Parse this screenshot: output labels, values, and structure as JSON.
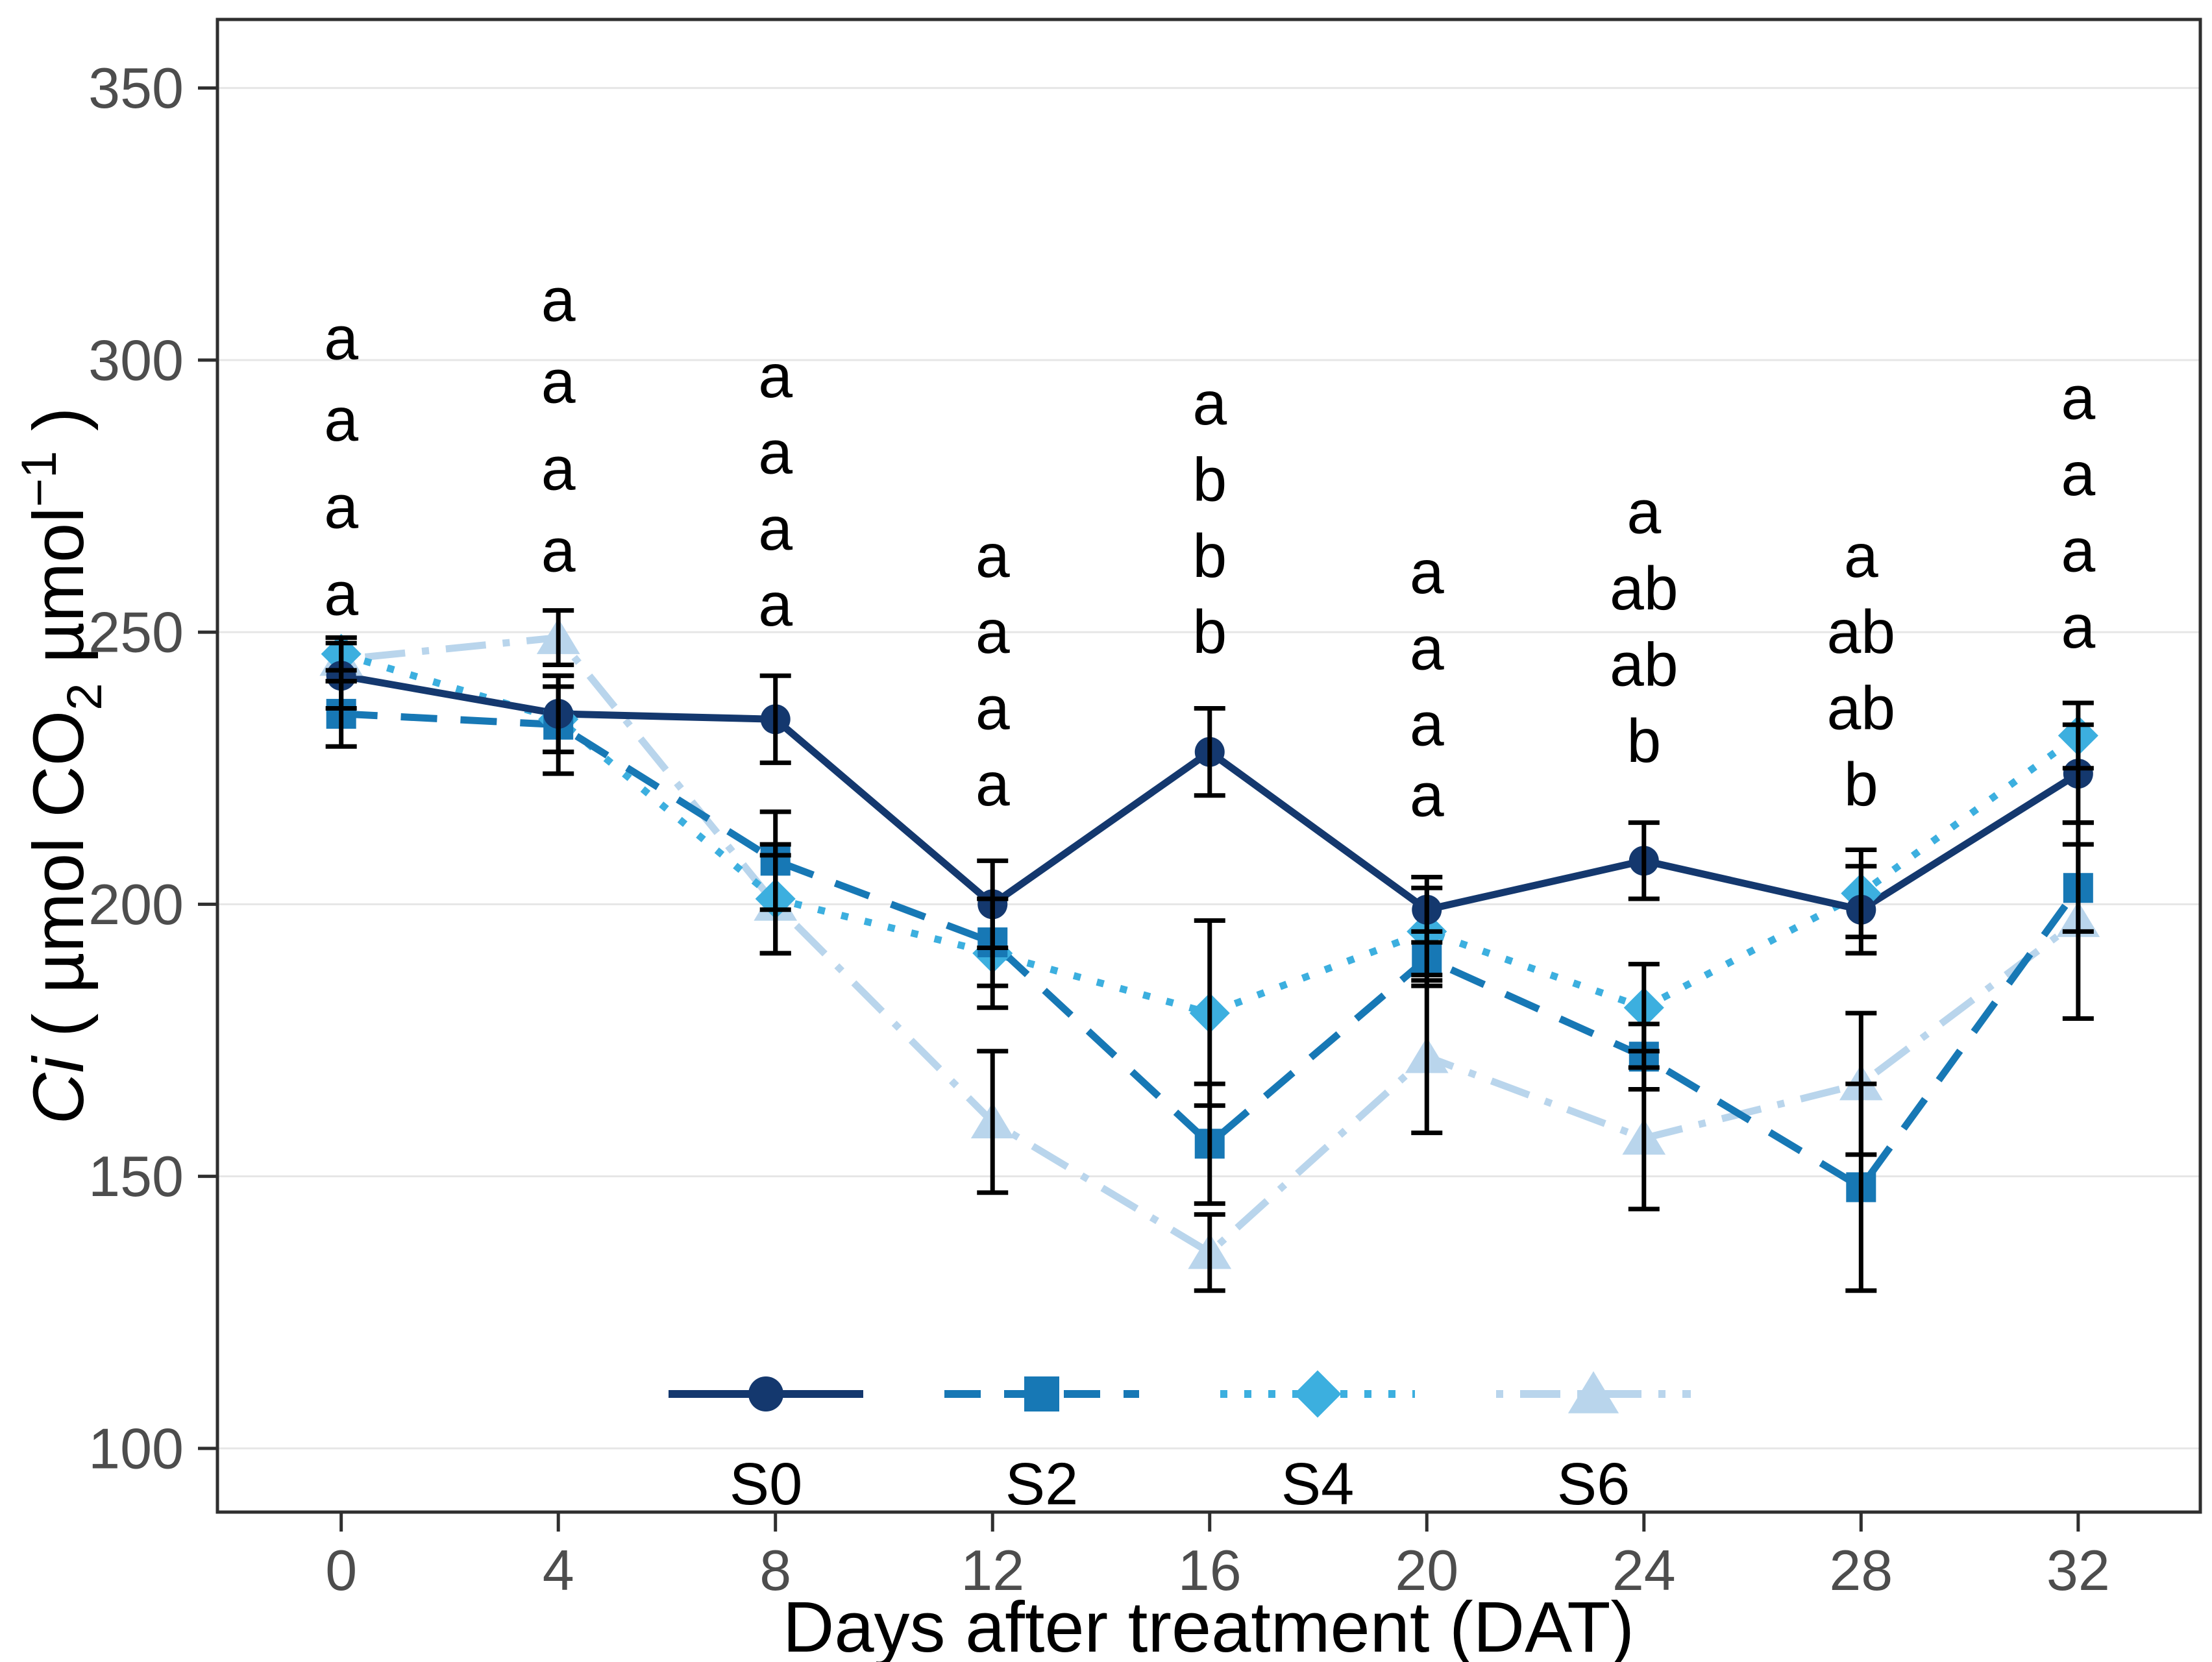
{
  "chart_data": {
    "type": "line",
    "title": "",
    "xlabel": "Days after treatment (DAT)",
    "ylabel": {
      "italic_prefix": "Ci",
      "open": " ( µmol CO",
      "sub": "2",
      "mid": "  µmol",
      "sup": "−1",
      "close": " )"
    },
    "x": [
      0,
      4,
      8,
      12,
      16,
      20,
      24,
      28,
      32
    ],
    "xticks": [
      0,
      4,
      8,
      12,
      16,
      20,
      24,
      28,
      32
    ],
    "yticks": [
      100,
      150,
      200,
      250,
      300,
      350
    ],
    "xlim": [
      -2.28,
      34.25
    ],
    "ylim": [
      88.3,
      362.6
    ],
    "grid": "horizontal-major-only",
    "legend_position": "bottom-inside",
    "series": [
      {
        "name": "S0",
        "color": "#14386e",
        "marker": "circle",
        "linestyle": "solid",
        "values": [
          242,
          235,
          234,
          200,
          228,
          199,
          208,
          199,
          224
        ],
        "errors": [
          6,
          7,
          8,
          8,
          8,
          6,
          7,
          8,
          9
        ]
      },
      {
        "name": "S2",
        "color": "#1778b5",
        "marker": "square",
        "linestyle": "dashed",
        "values": [
          235,
          233,
          208,
          193,
          156,
          190,
          172,
          148,
          203
        ],
        "errors": [
          6,
          9,
          9,
          8,
          11,
          5,
          6,
          19,
          8
        ]
      },
      {
        "name": "S4",
        "color": "#3cafdf",
        "marker": "diamond",
        "linestyle": "dotted",
        "values": [
          246,
          234,
          201,
          191,
          180,
          195,
          181,
          202,
          231
        ],
        "errors": [
          3,
          6,
          10,
          10,
          17,
          8,
          8,
          8,
          6
        ]
      },
      {
        "name": "S6",
        "color": "#b9d5ec",
        "marker": "triangle",
        "linestyle": "dotdash",
        "values": [
          245,
          249,
          200,
          160,
          136,
          172,
          157,
          167,
          197
        ],
        "errors": [
          4,
          5,
          9,
          13,
          7,
          14,
          13,
          13,
          18
        ]
      }
    ],
    "sig_letters": [
      {
        "x": 0,
        "items": [
          {
            "t": "a",
            "y": 304
          },
          {
            "t": "a",
            "y": 289
          },
          {
            "t": "a",
            "y": 273
          },
          {
            "t": "a",
            "y": 257
          }
        ]
      },
      {
        "x": 4,
        "items": [
          {
            "t": "a",
            "y": 311
          },
          {
            "t": "a",
            "y": 296
          },
          {
            "t": "a",
            "y": 280
          },
          {
            "t": "a",
            "y": 265
          }
        ]
      },
      {
        "x": 8,
        "items": [
          {
            "t": "a",
            "y": 297
          },
          {
            "t": "a",
            "y": 283
          },
          {
            "t": "a",
            "y": 269
          },
          {
            "t": "a",
            "y": 255
          }
        ]
      },
      {
        "x": 12,
        "items": [
          {
            "t": "a",
            "y": 264
          },
          {
            "t": "a",
            "y": 250
          },
          {
            "t": "a",
            "y": 236
          },
          {
            "t": "a",
            "y": 222
          }
        ]
      },
      {
        "x": 16,
        "items": [
          {
            "t": "a",
            "y": 292
          },
          {
            "t": "b",
            "y": 278
          },
          {
            "t": "b",
            "y": 264
          },
          {
            "t": "b",
            "y": 250
          }
        ]
      },
      {
        "x": 20,
        "items": [
          {
            "t": "a",
            "y": 261
          },
          {
            "t": "a",
            "y": 247
          },
          {
            "t": "a",
            "y": 233
          },
          {
            "t": "a",
            "y": 220
          }
        ]
      },
      {
        "x": 24,
        "items": [
          {
            "t": "a",
            "y": 272
          },
          {
            "t": "ab",
            "y": 258
          },
          {
            "t": "ab",
            "y": 244
          },
          {
            "t": "b",
            "y": 230
          }
        ]
      },
      {
        "x": 28,
        "items": [
          {
            "t": "a",
            "y": 264
          },
          {
            "t": "ab",
            "y": 250
          },
          {
            "t": "ab",
            "y": 236
          },
          {
            "t": "b",
            "y": 222
          }
        ]
      },
      {
        "x": 32,
        "items": [
          {
            "t": "a",
            "y": 293
          },
          {
            "t": "a",
            "y": 279
          },
          {
            "t": "a",
            "y": 265
          },
          {
            "t": "a",
            "y": 251
          }
        ]
      }
    ],
    "colors": {
      "grid": "#e6e6e6",
      "panel_border": "#2f2f2f",
      "axis_text": "#4d4d4d",
      "error_bar": "#000000",
      "letters": "#000000"
    }
  }
}
